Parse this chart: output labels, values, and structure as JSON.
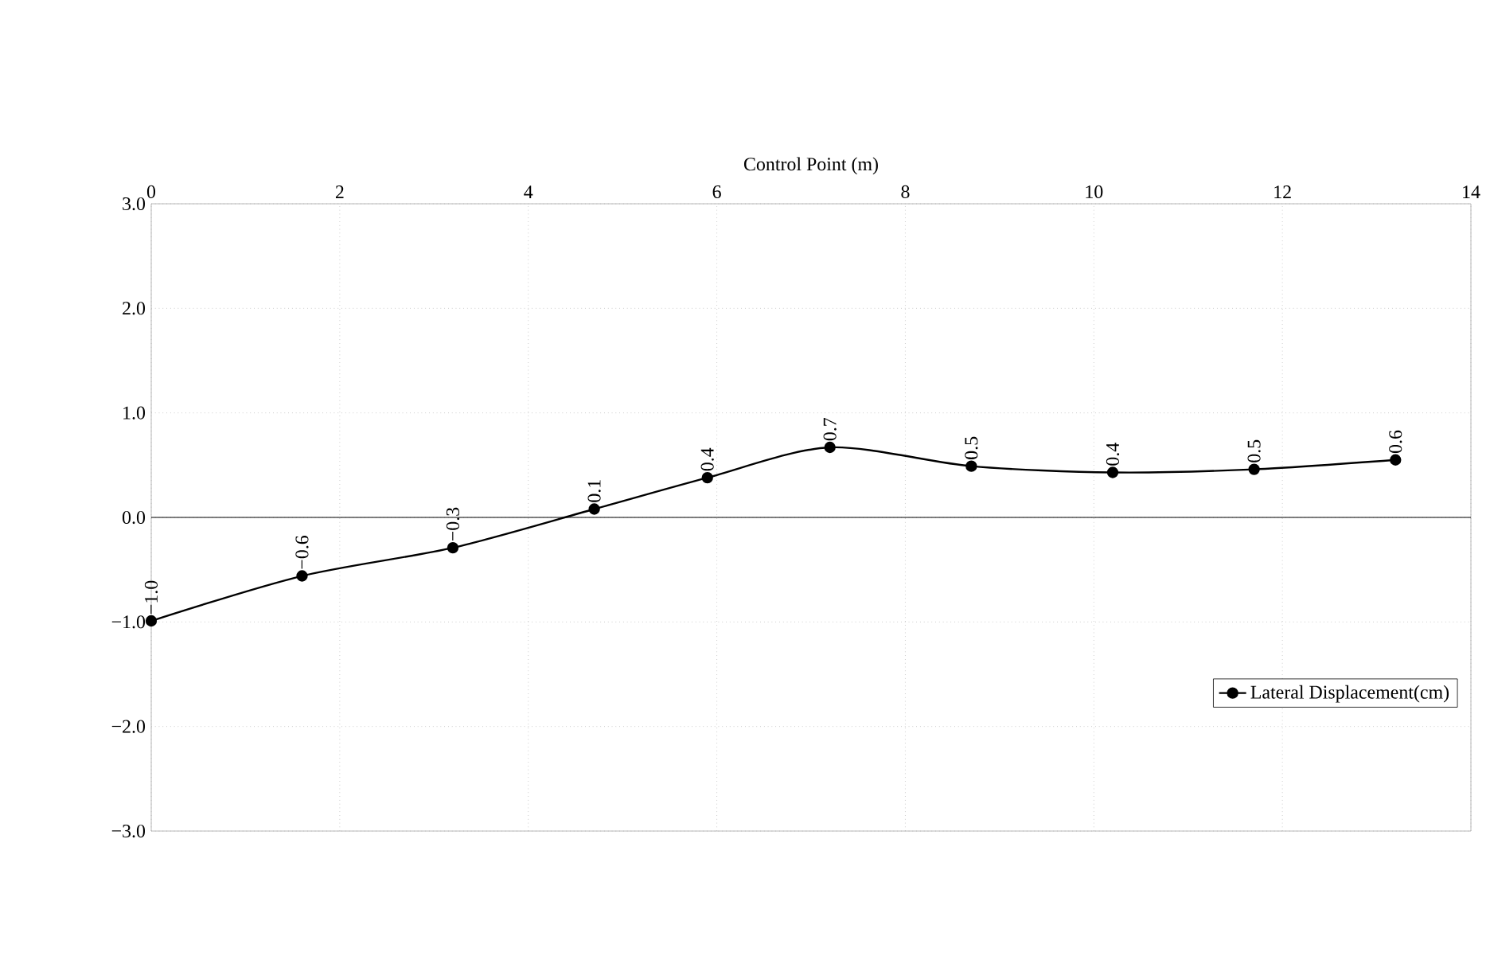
{
  "chart_data": {
    "type": "line",
    "xlabel": "Control Point (m)",
    "x": [
      0,
      1.6,
      3.2,
      4.7,
      5.9,
      7.2,
      8.7,
      10.2,
      11.7,
      13.2
    ],
    "series": [
      {
        "name": "Lateral Displacement(cm)",
        "color": "#000000",
        "values": [
          -0.99,
          -0.56,
          -0.29,
          0.08,
          0.38,
          0.67,
          0.49,
          0.43,
          0.46,
          0.55
        ],
        "value_labels": [
          "−1.0",
          "−0.6",
          "−0.3",
          "0.1",
          "0.4",
          "0.7",
          "0.5",
          "0.4",
          "0.5",
          "0.6"
        ]
      }
    ],
    "xlim": [
      0,
      14
    ],
    "xticks": [
      0,
      2,
      4,
      6,
      8,
      10,
      12,
      14
    ],
    "ylim": [
      -3,
      3
    ],
    "yticks": [
      {
        "value": -3,
        "label": "−3.0"
      },
      {
        "value": -2,
        "label": "−2.0"
      },
      {
        "value": -1,
        "label": "−1.0"
      },
      {
        "value": 0,
        "label": "0.0"
      },
      {
        "value": 1,
        "label": "1.0"
      },
      {
        "value": 2,
        "label": "2.0"
      },
      {
        "value": 3,
        "label": "3.0"
      }
    ],
    "ref_lines": [
      {
        "axis": "y",
        "value": 0,
        "color": "#000000"
      }
    ],
    "grid": true,
    "legend": "right",
    "marker": "circle",
    "line_style": "solid"
  }
}
